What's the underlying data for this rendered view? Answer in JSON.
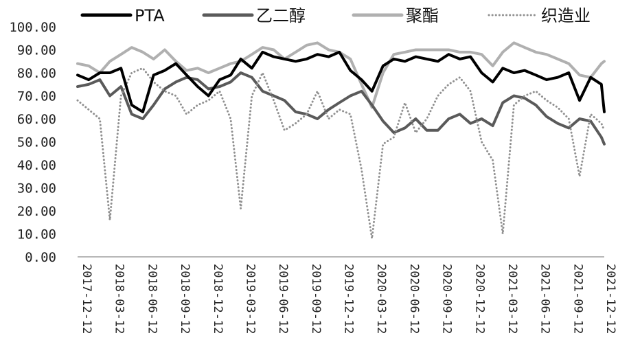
{
  "chart_data": {
    "type": "line",
    "title": "",
    "xlabel": "",
    "ylabel": "",
    "ylim": [
      0,
      100
    ],
    "ytick_labels": [
      "100.00",
      "90.00",
      "80.00",
      "70.00",
      "60.00",
      "50.00",
      "40.00",
      "30.00",
      "20.00",
      "10.00",
      "0.00"
    ],
    "xtick_labels": [
      "2017-12-12",
      "2018-03-12",
      "2018-06-12",
      "2018-09-12",
      "2018-12-12",
      "2019-03-12",
      "2019-06-12",
      "2019-09-12",
      "2019-12-12",
      "2020-03-12",
      "2020-06-12",
      "2020-09-12",
      "2020-12-12",
      "2021-03-12",
      "2021-06-12",
      "2021-09-12",
      "2021-12-12"
    ],
    "grid": false,
    "legend_position": "top",
    "x": [
      "2017-12-12",
      "2018-01-12",
      "2018-02-12",
      "2018-03-12",
      "2018-04-12",
      "2018-05-12",
      "2018-06-12",
      "2018-07-12",
      "2018-08-12",
      "2018-09-12",
      "2018-10-12",
      "2018-11-12",
      "2018-12-12",
      "2019-01-12",
      "2019-02-12",
      "2019-03-12",
      "2019-04-12",
      "2019-05-12",
      "2019-06-12",
      "2019-07-12",
      "2019-08-12",
      "2019-09-12",
      "2019-10-12",
      "2019-11-12",
      "2019-12-12",
      "2020-01-12",
      "2020-02-12",
      "2020-03-12",
      "2020-04-12",
      "2020-05-12",
      "2020-06-12",
      "2020-07-12",
      "2020-08-12",
      "2020-09-12",
      "2020-10-12",
      "2020-11-12",
      "2020-12-12",
      "2021-01-12",
      "2021-02-12",
      "2021-03-12",
      "2021-04-12",
      "2021-05-12",
      "2021-06-12",
      "2021-07-12",
      "2021-08-12",
      "2021-09-12",
      "2021-10-12",
      "2021-11-12",
      "2021-12-12",
      "2021-12-20"
    ],
    "series": [
      {
        "name": "PTA",
        "color": "#000000",
        "style": "solid",
        "values": [
          79,
          77,
          80,
          80,
          82,
          66,
          63,
          79,
          81,
          84,
          79,
          74,
          70,
          77,
          79,
          86,
          82,
          89,
          87,
          86,
          85,
          86,
          88,
          87,
          89,
          81,
          77,
          72,
          83,
          86,
          85,
          87,
          86,
          85,
          88,
          86,
          87,
          80,
          76,
          82,
          80,
          81,
          79,
          77,
          78,
          80,
          68,
          78,
          75,
          63
        ]
      },
      {
        "name": "乙二醇",
        "color": "#5a5a5a",
        "style": "solid",
        "values": [
          74,
          75,
          77,
          70,
          74,
          62,
          60,
          66,
          73,
          76,
          78,
          77,
          73,
          74,
          76,
          80,
          78,
          72,
          70,
          68,
          63,
          62,
          60,
          64,
          67,
          70,
          72,
          66,
          59,
          54,
          56,
          60,
          55,
          55,
          60,
          62,
          58,
          60,
          57,
          67,
          70,
          69,
          66,
          61,
          58,
          56,
          60,
          59,
          52,
          49
        ]
      },
      {
        "name": "聚酯",
        "color": "#b0b0b0",
        "style": "solid",
        "values": [
          84,
          83,
          80,
          85,
          88,
          91,
          89,
          86,
          90,
          85,
          81,
          82,
          80,
          82,
          84,
          85,
          88,
          91,
          90,
          86,
          89,
          92,
          93,
          90,
          89,
          86,
          75,
          65,
          80,
          88,
          89,
          90,
          90,
          90,
          90,
          89,
          89,
          88,
          83,
          89,
          93,
          91,
          89,
          88,
          86,
          84,
          79,
          78,
          84,
          85
        ]
      },
      {
        "name": "织造业",
        "color": "#909090",
        "style": "dotted",
        "values": [
          68,
          64,
          60,
          16,
          70,
          80,
          82,
          76,
          72,
          70,
          62,
          66,
          68,
          72,
          60,
          21,
          70,
          80,
          68,
          55,
          58,
          62,
          72,
          60,
          64,
          62,
          38,
          8,
          49,
          52,
          67,
          54,
          60,
          70,
          75,
          78,
          72,
          50,
          42,
          10,
          66,
          70,
          72,
          68,
          65,
          60,
          35,
          62,
          58,
          55
        ]
      }
    ]
  }
}
